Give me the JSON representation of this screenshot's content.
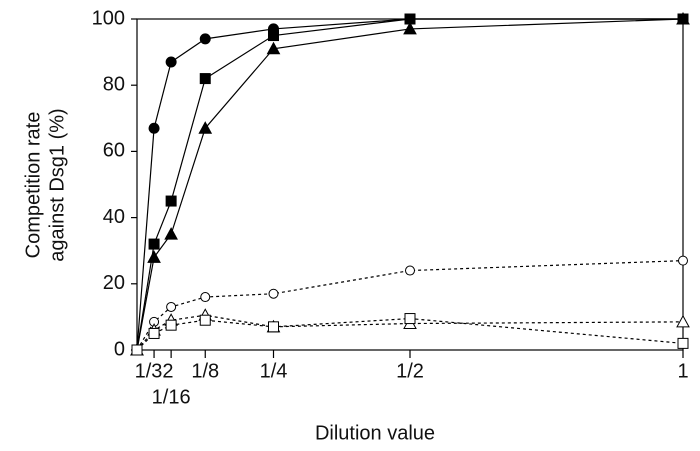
{
  "chart_data": {
    "type": "line",
    "xlabel": "Dilution value",
    "ylabel": [
      "Competition rate",
      "against Dsg1 (%)"
    ],
    "x": [
      0,
      0.03125,
      0.0625,
      0.125,
      0.25,
      0.5,
      1
    ],
    "xlim": [
      0,
      1
    ],
    "xticks": [
      {
        "value": 0.03125,
        "label": "1/32"
      },
      {
        "value": 0.0625,
        "label": "1/16"
      },
      {
        "value": 0.125,
        "label": "1/8"
      },
      {
        "value": 0.25,
        "label": "1/4"
      },
      {
        "value": 0.5,
        "label": "1/2"
      },
      1
    ],
    "ylim": [
      0,
      100
    ],
    "yticks": [
      0,
      20,
      40,
      60,
      80,
      100
    ],
    "grid": false,
    "series": [
      {
        "color": "#000000",
        "marker": "circle",
        "filled": true,
        "dashed": false,
        "values": [
          0,
          67,
          87,
          94,
          97,
          100,
          100
        ]
      },
      {
        "color": "#000000",
        "marker": "square",
        "filled": true,
        "dashed": false,
        "values": [
          0,
          32,
          45,
          82,
          95,
          100,
          100
        ]
      },
      {
        "color": "#000000",
        "marker": "triangle",
        "filled": true,
        "dashed": false,
        "values": [
          0,
          28,
          35,
          67,
          91,
          97,
          100
        ]
      },
      {
        "color": "#000000",
        "marker": "circle",
        "filled": false,
        "dashed": true,
        "values": [
          0,
          8.5,
          13,
          16,
          17,
          24,
          27
        ]
      },
      {
        "color": "#000000",
        "marker": "triangle",
        "filled": false,
        "dashed": true,
        "values": [
          0,
          6,
          9,
          10.5,
          7,
          8,
          8.5
        ]
      },
      {
        "color": "#000000",
        "marker": "square",
        "filled": false,
        "dashed": true,
        "values": [
          0,
          5,
          7.5,
          9,
          7,
          9.5,
          2
        ]
      }
    ]
  }
}
